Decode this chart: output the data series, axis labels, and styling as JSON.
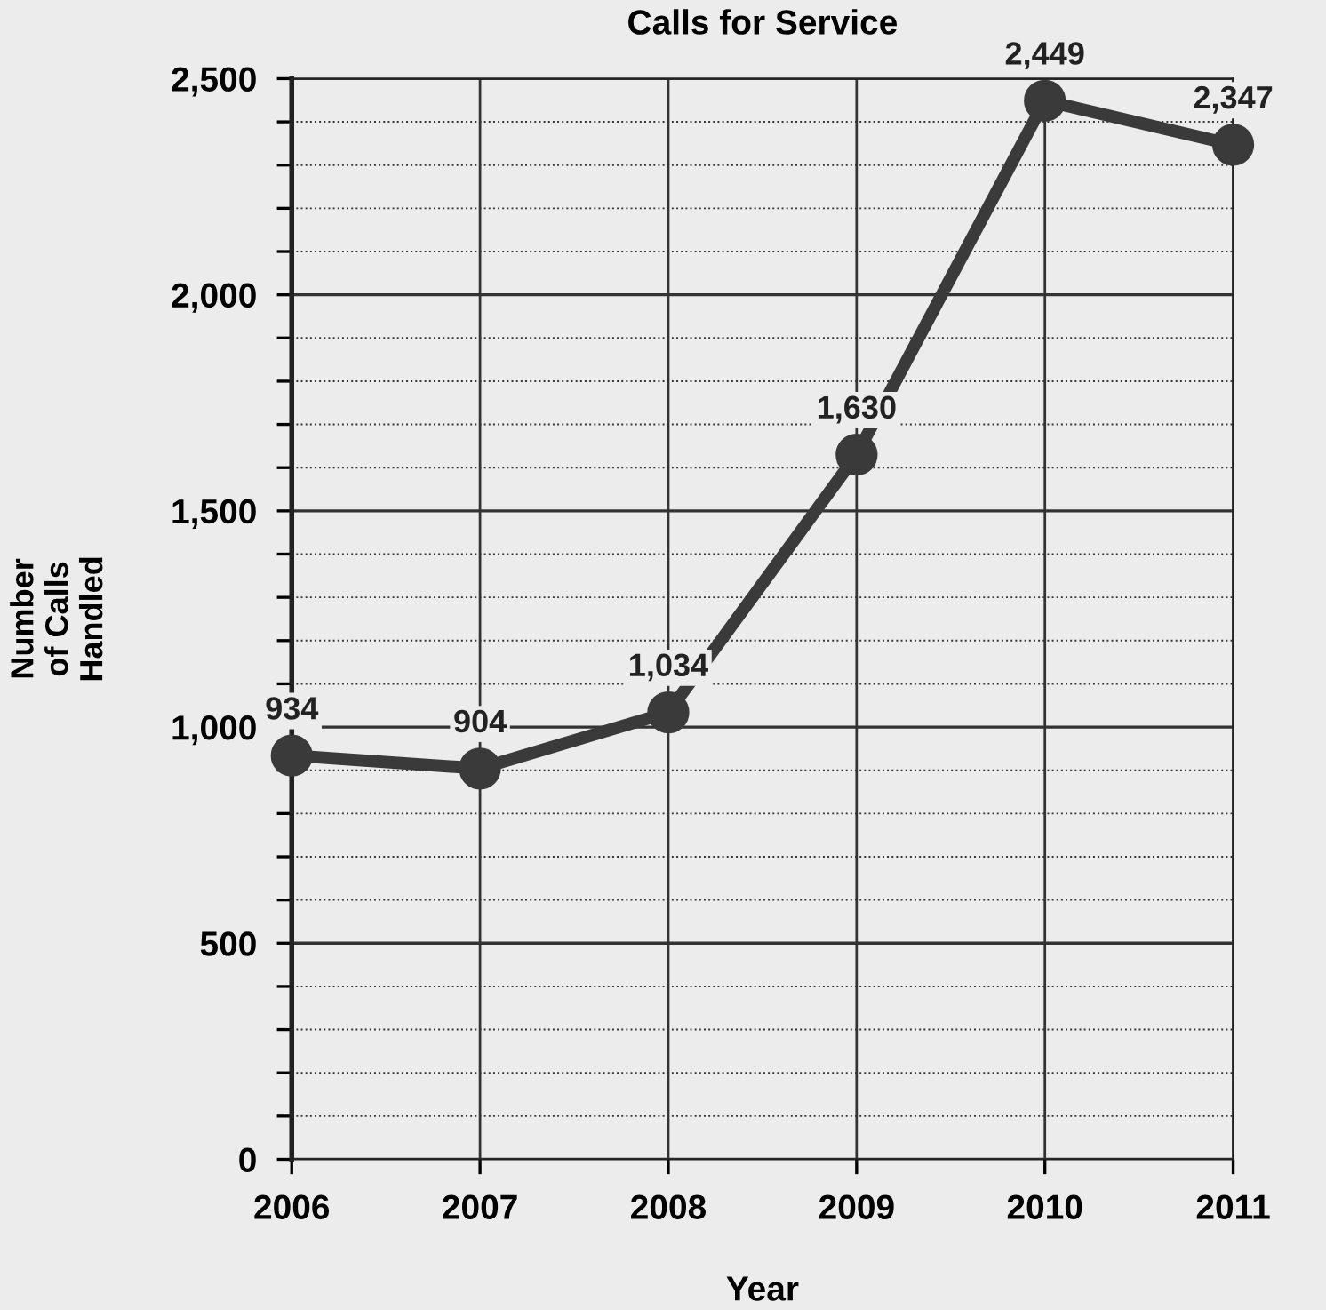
{
  "chart_data": {
    "type": "line",
    "title": "Calls for Service",
    "xlabel": "Year",
    "ylabel": "Number\nof Calls\nHandled",
    "x": [
      2006,
      2007,
      2008,
      2009,
      2010,
      2011
    ],
    "series": [
      {
        "color": "#3a3a3a",
        "values": [
          934,
          904,
          1034,
          1630,
          2449,
          2347
        ],
        "value_labels": [
          "934",
          "904",
          "1,034",
          "1,630",
          "2,449",
          "2,347"
        ]
      }
    ],
    "xlim": [
      2006,
      2011
    ],
    "xticks": [
      2006,
      2007,
      2008,
      2009,
      2010,
      2011
    ],
    "ylim": [
      0,
      2500
    ],
    "yticks": [
      {
        "value": 0,
        "label": "0"
      },
      {
        "value": 100,
        "label": null
      },
      {
        "value": 200,
        "label": null
      },
      {
        "value": 300,
        "label": null
      },
      {
        "value": 400,
        "label": null
      },
      {
        "value": 500,
        "label": "500"
      },
      {
        "value": 600,
        "label": null
      },
      {
        "value": 700,
        "label": null
      },
      {
        "value": 800,
        "label": null
      },
      {
        "value": 900,
        "label": null
      },
      {
        "value": 1000,
        "label": "1,000"
      },
      {
        "value": 1100,
        "label": null
      },
      {
        "value": 1200,
        "label": null
      },
      {
        "value": 1300,
        "label": null
      },
      {
        "value": 1400,
        "label": null
      },
      {
        "value": 1500,
        "label": "1,500"
      },
      {
        "value": 1600,
        "label": null
      },
      {
        "value": 1700,
        "label": null
      },
      {
        "value": 1800,
        "label": null
      },
      {
        "value": 1900,
        "label": null
      },
      {
        "value": 2000,
        "label": "2,000"
      },
      {
        "value": 2100,
        "label": null
      },
      {
        "value": 2200,
        "label": null
      },
      {
        "value": 2300,
        "label": null
      },
      {
        "value": 2400,
        "label": null
      },
      {
        "value": 2500,
        "label": "2,500"
      }
    ],
    "grid": true,
    "marker": "circle",
    "line_style": "solid",
    "legend": false
  }
}
